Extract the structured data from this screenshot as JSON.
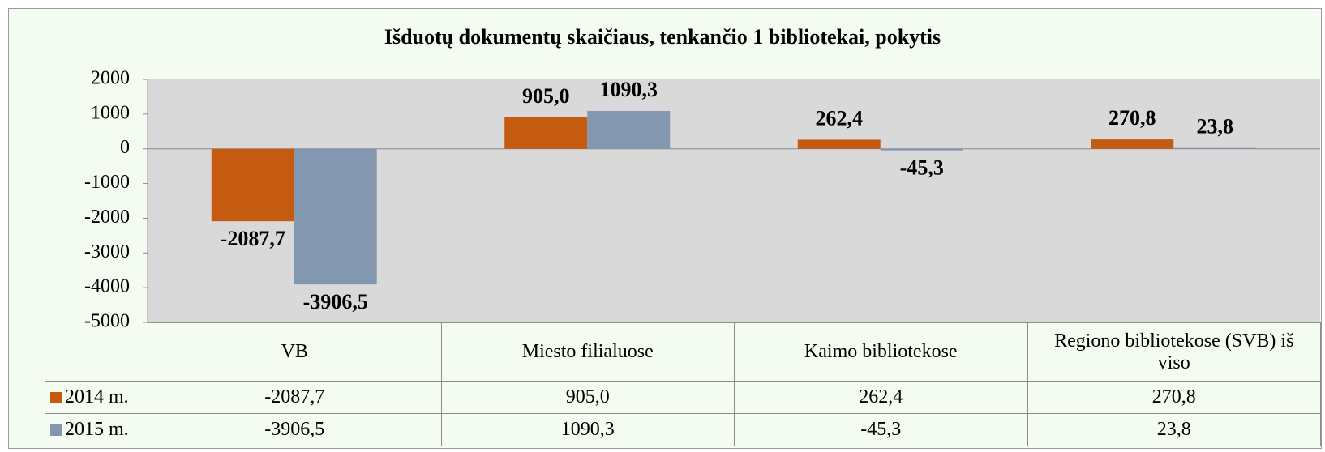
{
  "chart_data": {
    "type": "bar",
    "title": "Išduotų dokumentų skaičiaus, tenkančio 1 bibliotekai, pokytis",
    "categories": [
      "VB",
      "Miesto filialuose",
      "Kaimo bibliotekose",
      "Regiono bibliotekose (SVB) iš viso"
    ],
    "series": [
      {
        "name": "2014 m.",
        "color": "#c55a11",
        "values": [
          -2087.7,
          905.0,
          262.4,
          270.8
        ],
        "value_labels": [
          "-2087,7",
          "905,0",
          "262,4",
          "270,8"
        ]
      },
      {
        "name": "2015 m.",
        "color": "#8497b0",
        "values": [
          -3906.5,
          1090.3,
          -45.3,
          23.8
        ],
        "value_labels": [
          "-3906,5",
          "1090,3",
          "-45,3",
          "23,8"
        ]
      }
    ],
    "ylim": [
      -5000,
      2000
    ],
    "yticks": [
      -5000,
      -4000,
      -3000,
      -2000,
      -1000,
      0,
      1000,
      2000
    ]
  }
}
